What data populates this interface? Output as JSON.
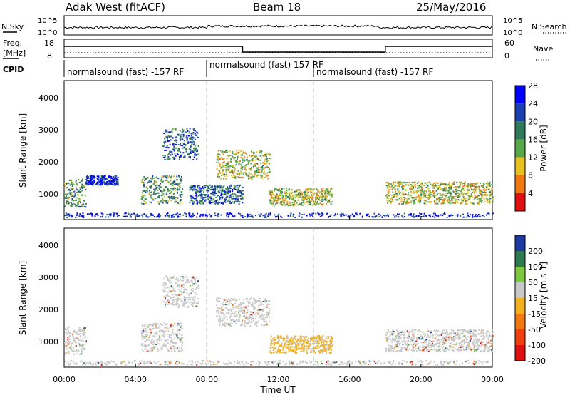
{
  "header": {
    "station": "Adak West (fitACF)",
    "beam": "Beam 18",
    "date": "25/May/2016"
  },
  "noise_panel": {
    "left_label": "N.Sky",
    "right_label": "N.Search",
    "left_ticks": [
      "10^5",
      "10^0"
    ],
    "right_ticks": [
      "10^5",
      "10^0"
    ]
  },
  "freq_panel": {
    "left_label_1": "Freq.",
    "left_label_2": "[MHz]",
    "right_label": "Nave",
    "left_ticks": [
      "18",
      "8"
    ],
    "right_ticks": [
      "60",
      "0"
    ]
  },
  "cpid": {
    "label": "CPID",
    "segments": [
      {
        "label": "normalsound (fast) -157 RF",
        "start_hour": 0
      },
      {
        "label": "normalsound (fast) 157 RF",
        "start_hour": 8
      },
      {
        "label": "normalsound (fast) -157 RF",
        "start_hour": 14
      }
    ]
  },
  "x_axis": {
    "label": "Time UT",
    "ticks": [
      "00:00",
      "04:00",
      "08:00",
      "12:00",
      "16:00",
      "20:00",
      "00:00"
    ]
  },
  "chart_data": [
    {
      "type": "heatmap",
      "title": "Power",
      "ylabel": "Slant Range [km]",
      "yticks": [
        "1000",
        "2000",
        "3000",
        "4000"
      ],
      "xlim": [
        0,
        24
      ],
      "ylim": [
        180,
        4600
      ],
      "colorbar": {
        "label": "Power [dB]",
        "ticks": [
          "4",
          "8",
          "12",
          "16",
          "20",
          "24",
          "28"
        ],
        "colors": [
          "#0000ff",
          "#1a3fb0",
          "#2f7a5a",
          "#58a84a",
          "#e8c020",
          "#f07a10",
          "#e01010"
        ]
      },
      "regions": [
        {
          "t0": 0.0,
          "t1": 1.2,
          "r0": 600,
          "r1": 1500,
          "level": 3
        },
        {
          "t0": 1.2,
          "t1": 3.0,
          "r0": 1300,
          "r1": 1600,
          "level": 1
        },
        {
          "t0": 4.3,
          "t1": 6.6,
          "r0": 700,
          "r1": 1600,
          "level": 3
        },
        {
          "t0": 5.5,
          "t1": 7.5,
          "r0": 2100,
          "r1": 3100,
          "level": 2
        },
        {
          "t0": 7.0,
          "t1": 10.0,
          "r0": 700,
          "r1": 1300,
          "level": 2
        },
        {
          "t0": 8.5,
          "t1": 11.5,
          "r0": 1500,
          "r1": 2400,
          "level": 4
        },
        {
          "t0": 11.5,
          "t1": 15.0,
          "r0": 650,
          "r1": 1200,
          "level": 4
        },
        {
          "t0": 18.0,
          "t1": 24.0,
          "r0": 700,
          "r1": 1400,
          "level": 4
        }
      ]
    },
    {
      "type": "heatmap",
      "title": "Velocity",
      "ylabel": "Slant Range [km]",
      "yticks": [
        "1000",
        "2000",
        "3000",
        "4000"
      ],
      "xlim": [
        0,
        24
      ],
      "ylim": [
        180,
        4600
      ],
      "colorbar": {
        "label": "Velocity [m s-1]",
        "ticks": [
          "200",
          "100",
          "50",
          "15",
          "-15",
          "-50",
          "-100",
          "-200"
        ],
        "colors": [
          "#1e3aa0",
          "#2e7a50",
          "#7ec840",
          "#c8c8c8",
          "#f0b020",
          "#f07a10",
          "#f04010",
          "#e01010"
        ]
      },
      "regions": [
        {
          "t0": 0.0,
          "t1": 1.2,
          "r0": 600,
          "r1": 1500,
          "v": "gray"
        },
        {
          "t0": 4.3,
          "t1": 6.6,
          "r0": 700,
          "r1": 1600,
          "v": "gray"
        },
        {
          "t0": 5.5,
          "t1": 7.5,
          "r0": 2100,
          "r1": 3100,
          "v": "gray"
        },
        {
          "t0": 8.5,
          "t1": 11.5,
          "r0": 1500,
          "r1": 2400,
          "v": "gray"
        },
        {
          "t0": 11.5,
          "t1": 15.0,
          "r0": 650,
          "r1": 1200,
          "v": "orange"
        },
        {
          "t0": 18.0,
          "t1": 24.0,
          "r0": 700,
          "r1": 1400,
          "v": "gray"
        }
      ]
    }
  ]
}
